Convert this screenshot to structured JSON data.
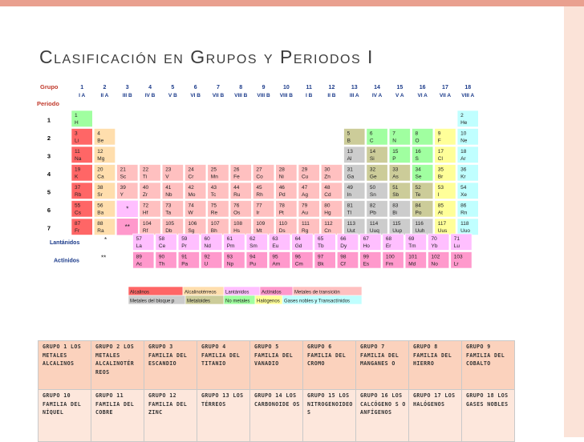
{
  "title": "Clasificación en Grupos y Periodos I",
  "colors": {
    "accent": "#e9a08f",
    "side": "#fbe3d8",
    "alcalinos": "#ff6666",
    "alcalinoterreos": "#ffdead",
    "lantanidos": "#ffbfff",
    "actinidos": "#ff99cc",
    "transicion": "#ffc0c0",
    "bloque_p": "#cccccc",
    "metaloides": "#cccc99",
    "no_metales": "#a0ffa0",
    "halogenos": "#ffff99",
    "gases_nobles": "#c0ffff",
    "label_red": "#c0392b",
    "label_blue": "#1a3a8a"
  },
  "periodic_table": {
    "header_group": "Grupo",
    "header_period": "Periodo",
    "group_numbers": [
      "1",
      "2",
      "3",
      "4",
      "5",
      "6",
      "7",
      "8",
      "9",
      "10",
      "11",
      "12",
      "13",
      "14",
      "15",
      "16",
      "17",
      "18"
    ],
    "group_roman": [
      "I A",
      "II A",
      "III B",
      "IV B",
      "V B",
      "VI B",
      "VII B",
      "VIII B",
      "VIII B",
      "VIII B",
      "I B",
      "II B",
      "III A",
      "IV A",
      "V A",
      "VI A",
      "VII A",
      "VIII A"
    ],
    "periods": [
      "1",
      "2",
      "3",
      "4",
      "5",
      "6",
      "7"
    ],
    "lanthanides_label": "Lantánidos",
    "actinides_label": "Actínidos",
    "marker_single": "*",
    "marker_double": "**",
    "elements": [
      {
        "z": "1",
        "s": "H",
        "p": 1,
        "g": 1,
        "c": "no_metales"
      },
      {
        "z": "2",
        "s": "He",
        "p": 1,
        "g": 18,
        "c": "gases_nobles"
      },
      {
        "z": "3",
        "s": "Li",
        "p": 2,
        "g": 1,
        "c": "alcalinos"
      },
      {
        "z": "4",
        "s": "Be",
        "p": 2,
        "g": 2,
        "c": "alcalinoterreos"
      },
      {
        "z": "5",
        "s": "B",
        "p": 2,
        "g": 13,
        "c": "metaloides"
      },
      {
        "z": "6",
        "s": "C",
        "p": 2,
        "g": 14,
        "c": "no_metales"
      },
      {
        "z": "7",
        "s": "N",
        "p": 2,
        "g": 15,
        "c": "no_metales"
      },
      {
        "z": "8",
        "s": "O",
        "p": 2,
        "g": 16,
        "c": "no_metales"
      },
      {
        "z": "9",
        "s": "F",
        "p": 2,
        "g": 17,
        "c": "halogenos"
      },
      {
        "z": "10",
        "s": "Ne",
        "p": 2,
        "g": 18,
        "c": "gases_nobles"
      },
      {
        "z": "11",
        "s": "Na",
        "p": 3,
        "g": 1,
        "c": "alcalinos"
      },
      {
        "z": "12",
        "s": "Mg",
        "p": 3,
        "g": 2,
        "c": "alcalinoterreos"
      },
      {
        "z": "13",
        "s": "Al",
        "p": 3,
        "g": 13,
        "c": "bloque_p"
      },
      {
        "z": "14",
        "s": "Si",
        "p": 3,
        "g": 14,
        "c": "metaloides"
      },
      {
        "z": "15",
        "s": "P",
        "p": 3,
        "g": 15,
        "c": "no_metales"
      },
      {
        "z": "16",
        "s": "S",
        "p": 3,
        "g": 16,
        "c": "no_metales"
      },
      {
        "z": "17",
        "s": "Cl",
        "p": 3,
        "g": 17,
        "c": "halogenos"
      },
      {
        "z": "18",
        "s": "Ar",
        "p": 3,
        "g": 18,
        "c": "gases_nobles"
      },
      {
        "z": "19",
        "s": "K",
        "p": 4,
        "g": 1,
        "c": "alcalinos"
      },
      {
        "z": "20",
        "s": "Ca",
        "p": 4,
        "g": 2,
        "c": "alcalinoterreos"
      },
      {
        "z": "21",
        "s": "Sc",
        "p": 4,
        "g": 3,
        "c": "transicion"
      },
      {
        "z": "22",
        "s": "Ti",
        "p": 4,
        "g": 4,
        "c": "transicion"
      },
      {
        "z": "23",
        "s": "V",
        "p": 4,
        "g": 5,
        "c": "transicion"
      },
      {
        "z": "24",
        "s": "Cr",
        "p": 4,
        "g": 6,
        "c": "transicion"
      },
      {
        "z": "25",
        "s": "Mn",
        "p": 4,
        "g": 7,
        "c": "transicion"
      },
      {
        "z": "26",
        "s": "Fe",
        "p": 4,
        "g": 8,
        "c": "transicion"
      },
      {
        "z": "27",
        "s": "Co",
        "p": 4,
        "g": 9,
        "c": "transicion"
      },
      {
        "z": "28",
        "s": "Ni",
        "p": 4,
        "g": 10,
        "c": "transicion"
      },
      {
        "z": "29",
        "s": "Cu",
        "p": 4,
        "g": 11,
        "c": "transicion"
      },
      {
        "z": "30",
        "s": "Zn",
        "p": 4,
        "g": 12,
        "c": "transicion"
      },
      {
        "z": "31",
        "s": "Ga",
        "p": 4,
        "g": 13,
        "c": "bloque_p"
      },
      {
        "z": "32",
        "s": "Ge",
        "p": 4,
        "g": 14,
        "c": "metaloides"
      },
      {
        "z": "33",
        "s": "As",
        "p": 4,
        "g": 15,
        "c": "metaloides"
      },
      {
        "z": "34",
        "s": "Se",
        "p": 4,
        "g": 16,
        "c": "no_metales"
      },
      {
        "z": "35",
        "s": "Br",
        "p": 4,
        "g": 17,
        "c": "halogenos"
      },
      {
        "z": "36",
        "s": "Kr",
        "p": 4,
        "g": 18,
        "c": "gases_nobles"
      },
      {
        "z": "37",
        "s": "Rb",
        "p": 5,
        "g": 1,
        "c": "alcalinos"
      },
      {
        "z": "38",
        "s": "Sr",
        "p": 5,
        "g": 2,
        "c": "alcalinoterreos"
      },
      {
        "z": "39",
        "s": "Y",
        "p": 5,
        "g": 3,
        "c": "transicion"
      },
      {
        "z": "40",
        "s": "Zr",
        "p": 5,
        "g": 4,
        "c": "transicion"
      },
      {
        "z": "41",
        "s": "Nb",
        "p": 5,
        "g": 5,
        "c": "transicion"
      },
      {
        "z": "42",
        "s": "Mo",
        "p": 5,
        "g": 6,
        "c": "transicion"
      },
      {
        "z": "43",
        "s": "Tc",
        "p": 5,
        "g": 7,
        "c": "transicion"
      },
      {
        "z": "44",
        "s": "Ru",
        "p": 5,
        "g": 8,
        "c": "transicion"
      },
      {
        "z": "45",
        "s": "Rh",
        "p": 5,
        "g": 9,
        "c": "transicion"
      },
      {
        "z": "46",
        "s": "Pd",
        "p": 5,
        "g": 10,
        "c": "transicion"
      },
      {
        "z": "47",
        "s": "Ag",
        "p": 5,
        "g": 11,
        "c": "transicion"
      },
      {
        "z": "48",
        "s": "Cd",
        "p": 5,
        "g": 12,
        "c": "transicion"
      },
      {
        "z": "49",
        "s": "In",
        "p": 5,
        "g": 13,
        "c": "bloque_p"
      },
      {
        "z": "50",
        "s": "Sn",
        "p": 5,
        "g": 14,
        "c": "bloque_p"
      },
      {
        "z": "51",
        "s": "Sb",
        "p": 5,
        "g": 15,
        "c": "metaloides"
      },
      {
        "z": "52",
        "s": "Te",
        "p": 5,
        "g": 16,
        "c": "metaloides"
      },
      {
        "z": "53",
        "s": "I",
        "p": 5,
        "g": 17,
        "c": "halogenos"
      },
      {
        "z": "54",
        "s": "Xe",
        "p": 5,
        "g": 18,
        "c": "gases_nobles"
      },
      {
        "z": "55",
        "s": "Cs",
        "p": 6,
        "g": 1,
        "c": "alcalinos"
      },
      {
        "z": "56",
        "s": "Ba",
        "p": 6,
        "g": 2,
        "c": "alcalinoterreos"
      },
      {
        "z": "72",
        "s": "Hf",
        "p": 6,
        "g": 4,
        "c": "transicion"
      },
      {
        "z": "73",
        "s": "Ta",
        "p": 6,
        "g": 5,
        "c": "transicion"
      },
      {
        "z": "74",
        "s": "W",
        "p": 6,
        "g": 6,
        "c": "transicion"
      },
      {
        "z": "75",
        "s": "Re",
        "p": 6,
        "g": 7,
        "c": "transicion"
      },
      {
        "z": "76",
        "s": "Os",
        "p": 6,
        "g": 8,
        "c": "transicion"
      },
      {
        "z": "77",
        "s": "Ir",
        "p": 6,
        "g": 9,
        "c": "transicion"
      },
      {
        "z": "78",
        "s": "Pt",
        "p": 6,
        "g": 10,
        "c": "transicion"
      },
      {
        "z": "79",
        "s": "Au",
        "p": 6,
        "g": 11,
        "c": "transicion"
      },
      {
        "z": "80",
        "s": "Hg",
        "p": 6,
        "g": 12,
        "c": "transicion"
      },
      {
        "z": "81",
        "s": "Tl",
        "p": 6,
        "g": 13,
        "c": "bloque_p"
      },
      {
        "z": "82",
        "s": "Pb",
        "p": 6,
        "g": 14,
        "c": "bloque_p"
      },
      {
        "z": "83",
        "s": "Bi",
        "p": 6,
        "g": 15,
        "c": "bloque_p"
      },
      {
        "z": "84",
        "s": "Po",
        "p": 6,
        "g": 16,
        "c": "metaloides"
      },
      {
        "z": "85",
        "s": "At",
        "p": 6,
        "g": 17,
        "c": "halogenos"
      },
      {
        "z": "86",
        "s": "Rn",
        "p": 6,
        "g": 18,
        "c": "gases_nobles"
      },
      {
        "z": "87",
        "s": "Fr",
        "p": 7,
        "g": 1,
        "c": "alcalinos"
      },
      {
        "z": "88",
        "s": "Ra",
        "p": 7,
        "g": 2,
        "c": "alcalinoterreos"
      },
      {
        "z": "104",
        "s": "Rf",
        "p": 7,
        "g": 4,
        "c": "transicion"
      },
      {
        "z": "105",
        "s": "Db",
        "p": 7,
        "g": 5,
        "c": "transicion"
      },
      {
        "z": "106",
        "s": "Sg",
        "p": 7,
        "g": 6,
        "c": "transicion"
      },
      {
        "z": "107",
        "s": "Bh",
        "p": 7,
        "g": 7,
        "c": "transicion"
      },
      {
        "z": "108",
        "s": "Hs",
        "p": 7,
        "g": 8,
        "c": "transicion"
      },
      {
        "z": "109",
        "s": "Mt",
        "p": 7,
        "g": 9,
        "c": "transicion"
      },
      {
        "z": "110",
        "s": "Ds",
        "p": 7,
        "g": 10,
        "c": "transicion"
      },
      {
        "z": "111",
        "s": "Rg",
        "p": 7,
        "g": 11,
        "c": "transicion"
      },
      {
        "z": "112",
        "s": "Cn",
        "p": 7,
        "g": 12,
        "c": "transicion"
      },
      {
        "z": "113",
        "s": "Uut",
        "p": 7,
        "g": 13,
        "c": "bloque_p"
      },
      {
        "z": "114",
        "s": "Uuq",
        "p": 7,
        "g": 14,
        "c": "bloque_p"
      },
      {
        "z": "115",
        "s": "Uup",
        "p": 7,
        "g": 15,
        "c": "bloque_p"
      },
      {
        "z": "116",
        "s": "Uuh",
        "p": 7,
        "g": 16,
        "c": "bloque_p"
      },
      {
        "z": "117",
        "s": "Uus",
        "p": 7,
        "g": 17,
        "c": "halogenos"
      },
      {
        "z": "118",
        "s": "Uuo",
        "p": 7,
        "g": 18,
        "c": "gases_nobles"
      }
    ],
    "lanthanides": [
      {
        "z": "57",
        "s": "La"
      },
      {
        "z": "58",
        "s": "Ce"
      },
      {
        "z": "59",
        "s": "Pr"
      },
      {
        "z": "60",
        "s": "Nd"
      },
      {
        "z": "61",
        "s": "Pm"
      },
      {
        "z": "62",
        "s": "Sm"
      },
      {
        "z": "63",
        "s": "Eu"
      },
      {
        "z": "64",
        "s": "Gd"
      },
      {
        "z": "65",
        "s": "Tb"
      },
      {
        "z": "66",
        "s": "Dy"
      },
      {
        "z": "67",
        "s": "Ho"
      },
      {
        "z": "68",
        "s": "Er"
      },
      {
        "z": "69",
        "s": "Tm"
      },
      {
        "z": "70",
        "s": "Yb"
      },
      {
        "z": "71",
        "s": "Lu"
      }
    ],
    "actinides": [
      {
        "z": "89",
        "s": "Ac"
      },
      {
        "z": "90",
        "s": "Th"
      },
      {
        "z": "91",
        "s": "Pa"
      },
      {
        "z": "92",
        "s": "U"
      },
      {
        "z": "93",
        "s": "Np"
      },
      {
        "z": "94",
        "s": "Pu"
      },
      {
        "z": "95",
        "s": "Am"
      },
      {
        "z": "96",
        "s": "Cm"
      },
      {
        "z": "97",
        "s": "Bk"
      },
      {
        "z": "98",
        "s": "Cf"
      },
      {
        "z": "99",
        "s": "Es"
      },
      {
        "z": "100",
        "s": "Fm"
      },
      {
        "z": "101",
        "s": "Md"
      },
      {
        "z": "102",
        "s": "No"
      },
      {
        "z": "103",
        "s": "Lr"
      }
    ],
    "legend": [
      {
        "label": "Alcalinos",
        "c": "alcalinos"
      },
      {
        "label": "Alcalinotérreos",
        "c": "alcalinoterreos"
      },
      {
        "label": "Lantánidos",
        "c": "lantanidos"
      },
      {
        "label": "Actínidos",
        "c": "actinidos"
      },
      {
        "label": "Metales de transición",
        "c": "transicion"
      },
      {
        "label": "Metales del bloque p",
        "c": "bloque_p"
      },
      {
        "label": "Metaloides",
        "c": "metaloides"
      },
      {
        "label": "No metales",
        "c": "no_metales"
      },
      {
        "label": "Halógenos",
        "c": "halogenos"
      },
      {
        "label": "Gases nobles y Transactínidos",
        "c": "gases_nobles"
      }
    ]
  },
  "groups_table": {
    "row1": [
      "Grupo 1 Los metales alcalinos",
      "Grupo 2 Los metales alcalinotér reos",
      "Grupo 3 Familia del Escandio",
      "Grupo 4 Familia del Titanio",
      "Grupo 5 Familia del Vanadio",
      "Grupo 6 Familia del Cromo",
      "Grupo 7 Familia del manganes o",
      "Grupo 8 Familia del Hierro",
      "Grupo 9 Familia del Cobalto"
    ],
    "row2": [
      "Grupo 10 Familia del Níquel",
      "Grupo 11 Familia del Cobre",
      "Grupo 12 Familia del Zinc",
      "Grupo 13 Los térreos",
      "Grupo 14 Los carbonoide os",
      "Grupo 15 Los nitrogenoideo s",
      "Grupo 16 Los calcógeno s o anfígenos",
      "Grupo 17 Los halógenos",
      "Grupo 18 Los gases nobles"
    ]
  }
}
